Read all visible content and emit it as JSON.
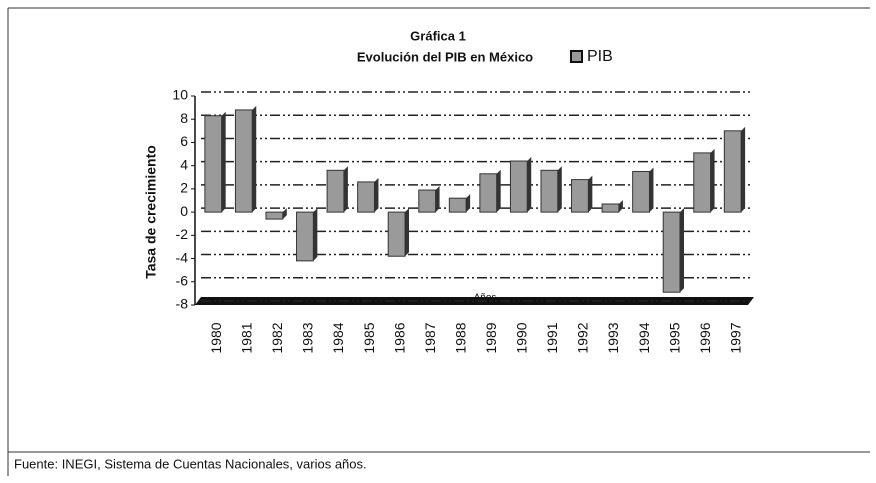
{
  "chart_data": {
    "type": "bar",
    "title": "Gráfica 1",
    "subtitle": "Evolución del PIB en México",
    "y_label": "Tasa de crecimiento",
    "x_label": "Años",
    "source": "Fuente: INEGI, Sistema de Cuentas Nacionales, varios años.",
    "categories": [
      "1980",
      "1981",
      "1982",
      "1983",
      "1984",
      "1985",
      "1986",
      "1987",
      "1988",
      "1989",
      "1990",
      "1991",
      "1992",
      "1993",
      "1994",
      "1995",
      "1996",
      "1997"
    ],
    "series": [
      {
        "name": "PIB",
        "color": "#9a9a9a",
        "values": [
          8.3,
          8.8,
          -0.6,
          -4.2,
          3.6,
          2.6,
          -3.8,
          1.9,
          1.2,
          3.3,
          4.4,
          3.6,
          2.8,
          0.7,
          3.5,
          -6.9,
          5.1,
          7.0
        ]
      }
    ],
    "ylim": [
      -8,
      10
    ],
    "yticks": [
      -8,
      -6,
      -4,
      -2,
      0,
      2,
      4,
      6,
      8,
      10
    ],
    "grid": true,
    "legend": "top-right"
  }
}
